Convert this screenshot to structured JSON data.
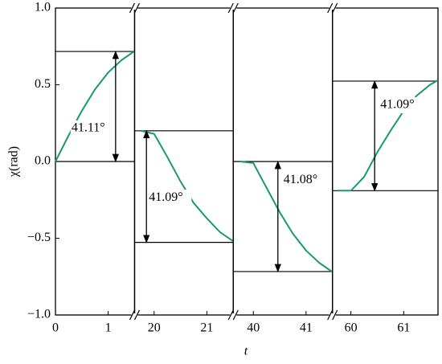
{
  "chart_data": {
    "type": "line",
    "xlabel": "t",
    "ylabel": "χ(rad)",
    "color": "#1a9a6c",
    "ylim": [
      -1,
      1
    ],
    "yticks": [
      {
        "value": -1,
        "label": "−1.0"
      },
      {
        "value": -0.5,
        "label": "−0.5"
      },
      {
        "value": 0,
        "label": "0.0"
      },
      0.5,
      {
        "value": 1,
        "label": "1.0"
      }
    ],
    "panels": [
      {
        "xlim": [
          0,
          1.5
        ],
        "xticks": [
          0,
          1
        ],
        "x": [
          0,
          0.25,
          0.5,
          0.75,
          1.0,
          1.25,
          1.5
        ],
        "values": [
          0,
          0.17,
          0.33,
          0.47,
          0.58,
          0.66,
          0.72
        ],
        "levels": [
          0,
          0.717
        ],
        "angle_label": "41.11°"
      },
      {
        "xlim": [
          19.63,
          21.5
        ],
        "xticks": [
          20,
          21
        ],
        "x": [
          19.75,
          20.0,
          20.25,
          20.5,
          20.75,
          21.0,
          21.25,
          21.5
        ],
        "values": [
          0.2,
          0.18,
          0.03,
          -0.13,
          -0.27,
          -0.37,
          -0.46,
          -0.52
        ],
        "levels": [
          0.2,
          -0.527
        ],
        "angle_label": "41.09°"
      },
      {
        "xlim": [
          39.62,
          41.5
        ],
        "xticks": [
          40,
          41
        ],
        "x": [
          39.75,
          40.0,
          40.25,
          40.5,
          40.75,
          41.0,
          41.25,
          41.5
        ],
        "values": [
          0,
          -0.01,
          -0.17,
          -0.33,
          -0.47,
          -0.58,
          -0.66,
          -0.72
        ],
        "levels": [
          0,
          -0.717
        ],
        "angle_label": "41.08°"
      },
      {
        "xlim": [
          59.65,
          61.65
        ],
        "xticks": [
          60,
          61
        ],
        "x": [
          59.75,
          60.0,
          60.25,
          60.5,
          60.75,
          61.0,
          61.25,
          61.5,
          61.65
        ],
        "values": [
          -0.19,
          -0.19,
          -0.1,
          0.06,
          0.2,
          0.33,
          0.43,
          0.5,
          0.53
        ],
        "levels": [
          0.524,
          -0.19
        ],
        "angle_label": "41.09°"
      }
    ]
  }
}
